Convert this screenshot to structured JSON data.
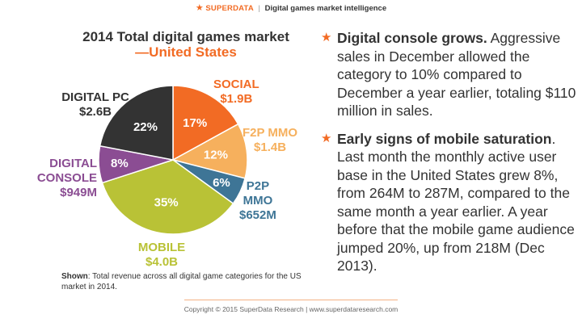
{
  "header": {
    "brand": "SUPERDATA",
    "separator": "|",
    "tagline": "Digital games market intelligence"
  },
  "chart_data": {
    "type": "pie",
    "title": "2014 Total digital games market",
    "subtitle": "—United States",
    "slices": [
      {
        "label": "SOCIAL",
        "value_label": "$1.9B",
        "value": 1.9,
        "percent_label": "17%",
        "percent": 17,
        "color": "#f26b24"
      },
      {
        "label": "F2P MMO",
        "value_label": "$1.4B",
        "value": 1.4,
        "percent_label": "12%",
        "percent": 12,
        "color": "#f6b05d"
      },
      {
        "label": "P2P MMO",
        "value_label": "$652M",
        "value": 0.652,
        "percent_label": "6%",
        "percent": 6,
        "color": "#3e7596"
      },
      {
        "label": "MOBILE",
        "value_label": "$4.0B",
        "value": 4.0,
        "percent_label": "35%",
        "percent": 35,
        "color": "#b9c236"
      },
      {
        "label": "DIGITAL CONSOLE",
        "value_label": "$949M",
        "value": 0.949,
        "percent_label": "8%",
        "percent": 8,
        "color": "#8b4d93"
      },
      {
        "label": "DIGITAL PC",
        "value_label": "$2.6B",
        "value": 2.6,
        "percent_label": "22%",
        "percent": 22,
        "color": "#333333"
      }
    ]
  },
  "labels": {
    "social": {
      "line1": "SOCIAL",
      "line2": "$1.9B",
      "color": "#f26b24"
    },
    "f2p": {
      "line1": "F2P MMO",
      "line2": "$1.4B",
      "color": "#f6b05d"
    },
    "p2p": {
      "line1": "P2P",
      "line2": "MMO",
      "line3": "$652M",
      "color": "#3e7596"
    },
    "mobile": {
      "line1": "MOBILE",
      "line2": "$4.0B",
      "color": "#b9c236"
    },
    "console": {
      "line1": "DIGITAL",
      "line2": "CONSOLE",
      "line3": "$949M",
      "color": "#8b4d93"
    },
    "pc": {
      "line1": "DIGITAL PC",
      "line2": "$2.6B",
      "color": "#333333"
    }
  },
  "note": {
    "bold": "Shown",
    "text": ": Total revenue across all digital game categories for the US market in 2014."
  },
  "bullets": [
    {
      "star": "★",
      "head": "Digital console grows.",
      "text": " Aggressive sales in December allowed the category to 10% compared to December a year earlier, totaling $110 million in sales."
    },
    {
      "star": "★",
      "head": "Early signs of mobile saturation",
      "text": ". Last month the monthly active user base in the United States grew 8%, from 264M to 287M, compared to the same month a year earlier. A year before that the mobile game audience jumped 20%, up from 218M (Dec 2013)."
    }
  ],
  "footer": "Copyright © 2015 SuperData Research | www.superdataresearch.com"
}
